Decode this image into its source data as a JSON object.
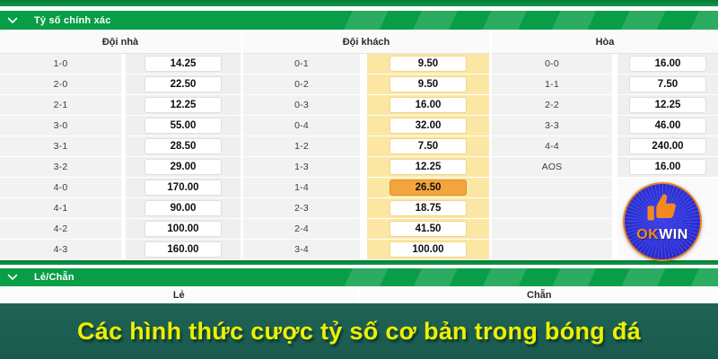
{
  "correct_score": {
    "title": "Tỷ số chính xác",
    "columns": [
      {
        "id": "home",
        "header": "Đội nhà",
        "rows": [
          [
            "1-0",
            "14.25"
          ],
          [
            "2-0",
            "22.50"
          ],
          [
            "2-1",
            "12.25"
          ],
          [
            "3-0",
            "55.00"
          ],
          [
            "3-1",
            "28.50"
          ],
          [
            "3-2",
            "29.00"
          ],
          [
            "4-0",
            "170.00"
          ],
          [
            "4-1",
            "90.00"
          ],
          [
            "4-2",
            "100.00"
          ],
          [
            "4-3",
            "160.00"
          ]
        ]
      },
      {
        "id": "away",
        "header": "Đội khách",
        "highlighted_row": 6,
        "rows": [
          [
            "0-1",
            "9.50"
          ],
          [
            "0-2",
            "9.50"
          ],
          [
            "0-3",
            "16.00"
          ],
          [
            "0-4",
            "32.00"
          ],
          [
            "1-2",
            "7.50"
          ],
          [
            "1-3",
            "12.25"
          ],
          [
            "1-4",
            "26.50"
          ],
          [
            "2-3",
            "18.75"
          ],
          [
            "2-4",
            "41.50"
          ],
          [
            "3-4",
            "100.00"
          ]
        ]
      },
      {
        "id": "draw",
        "header": "Hòa",
        "rows": [
          [
            "0-0",
            "16.00"
          ],
          [
            "1-1",
            "7.50"
          ],
          [
            "2-2",
            "12.25"
          ],
          [
            "3-3",
            "46.00"
          ],
          [
            "4-4",
            "240.00"
          ],
          [
            "AOS",
            "16.00"
          ]
        ]
      }
    ],
    "row_count": 10
  },
  "odd_even": {
    "title": "Lẻ/Chẵn",
    "headers": [
      "Lẻ",
      "Chẵn"
    ]
  },
  "banner": {
    "text": "Các hình thức cược tỷ số cơ bản trong bóng đá"
  },
  "logo": {
    "ok": "OK",
    "win": "WIN",
    "icon": "thumbs-up-icon"
  },
  "colors": {
    "green": "#089e47",
    "dark_green": "#0b8c3f",
    "away_column_bg": "#fbe7a3",
    "highlight_orange": "#f3a53d",
    "banner_bg": "#1b5a4e",
    "banner_text": "#eef000",
    "logo_blue": "#2b2fd6",
    "logo_orange": "#f5891f"
  }
}
